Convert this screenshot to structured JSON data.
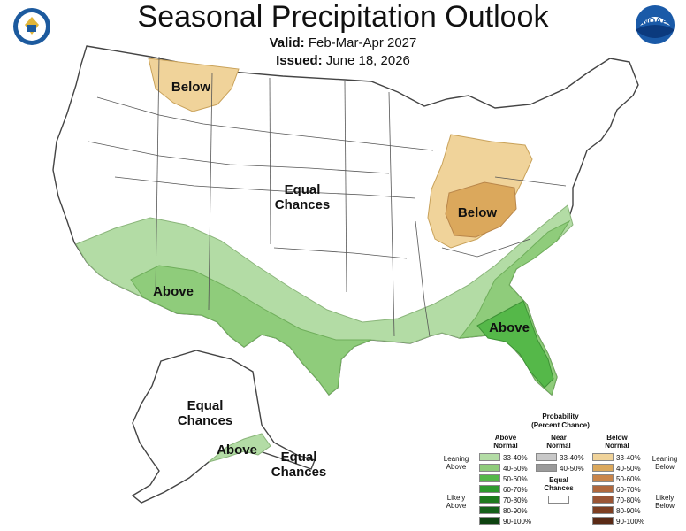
{
  "header": {
    "title": "Seasonal Precipitation Outlook",
    "valid_label": "Valid:",
    "valid_value": "Feb-Mar-Apr 2027",
    "issued_label": "Issued:",
    "issued_value": "June 18, 2026"
  },
  "map_labels": {
    "below_north": "Below",
    "equal_center_1": "Equal",
    "equal_center_2": "Chances",
    "below_midwest": "Below",
    "above_southwest": "Above",
    "above_southeast": "Above",
    "alaska_equal_1": "Equal",
    "alaska_equal_2": "Chances",
    "alaska_above": "Above",
    "alaska_equal_east_1": "Equal",
    "alaska_equal_east_2": "Chances"
  },
  "legend": {
    "title_1": "Probability",
    "title_2": "(Percent Chance)",
    "above_header_1": "Above",
    "above_header_2": "Normal",
    "near_header_1": "Near",
    "near_header_2": "Normal",
    "below_header_1": "Below",
    "below_header_2": "Normal",
    "leaning_above_1": "Leaning",
    "leaning_above_2": "Above",
    "likely_above_1": "Likely",
    "likely_above_2": "Above",
    "leaning_below_1": "Leaning",
    "leaning_below_2": "Below",
    "likely_below_1": "Likely",
    "likely_below_2": "Below",
    "equal_chances_1": "Equal",
    "equal_chances_2": "Chances",
    "above_levels": [
      "33-40%",
      "40-50%",
      "50-60%",
      "60-70%",
      "70-80%",
      "80-90%",
      "90-100%"
    ],
    "near_levels": [
      "33-40%",
      "40-50%"
    ],
    "below_levels": [
      "33-40%",
      "40-50%",
      "50-60%",
      "60-70%",
      "70-80%",
      "80-90%",
      "90-100%"
    ],
    "above_colors": [
      "#b3dca5",
      "#8fcc7b",
      "#55b849",
      "#2e9a2e",
      "#1e7a1e",
      "#15601a",
      "#0d4210"
    ],
    "near_colors": [
      "#c8c8c8",
      "#9a9a9a"
    ],
    "below_colors": [
      "#f0d39a",
      "#dba85c",
      "#c9854a",
      "#b0683d",
      "#9a5535",
      "#7e3f22",
      "#5a2a16"
    ]
  },
  "logos": {
    "left": "dept-of-commerce-seal",
    "right_text": "NOAA"
  }
}
